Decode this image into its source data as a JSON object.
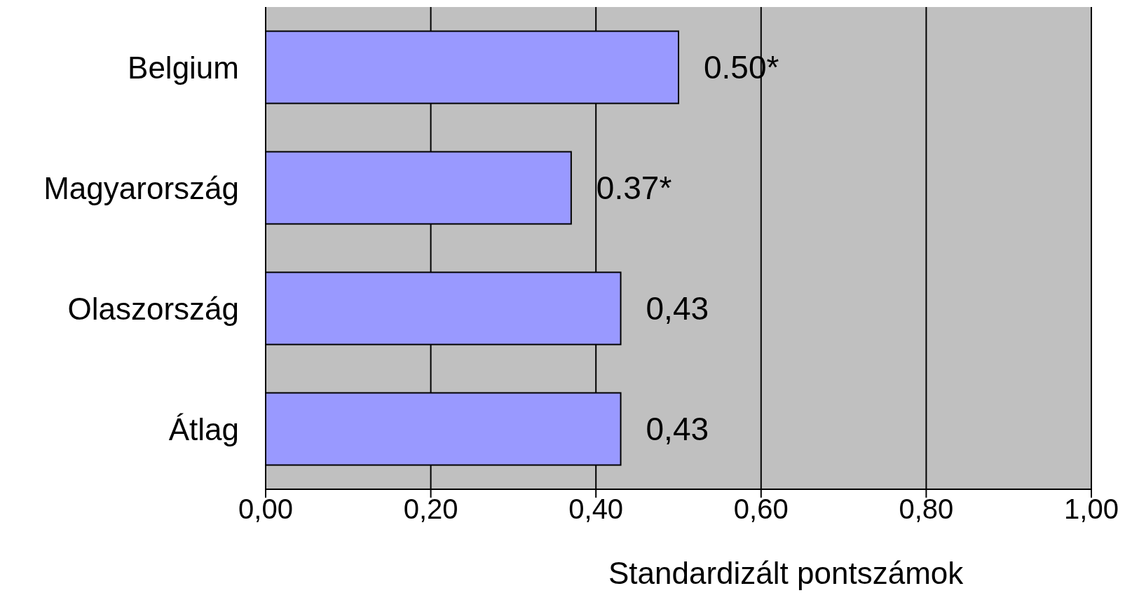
{
  "chart_data": {
    "type": "bar",
    "orientation": "horizontal",
    "categories": [
      "Belgium",
      "Magyarország",
      "Olaszország",
      "Átlag"
    ],
    "values": [
      0.5,
      0.37,
      0.43,
      0.43
    ],
    "color": "#9999ff",
    "value_labels": [
      "0.50*",
      "0.37*",
      "0,43",
      "0,43"
    ],
    "xlim": [
      0,
      1
    ],
    "xticks": [
      {
        "value": 0,
        "label": "0,00"
      },
      {
        "value": 0.2,
        "label": "0,20"
      },
      {
        "value": 0.4,
        "label": "0,40"
      },
      {
        "value": 0.6,
        "label": "0,60"
      },
      {
        "value": 0.8,
        "label": "0,80"
      },
      {
        "value": 1,
        "label": "1,00"
      }
    ],
    "xlabel": "Standardizált pontszámok",
    "grid": "x"
  }
}
